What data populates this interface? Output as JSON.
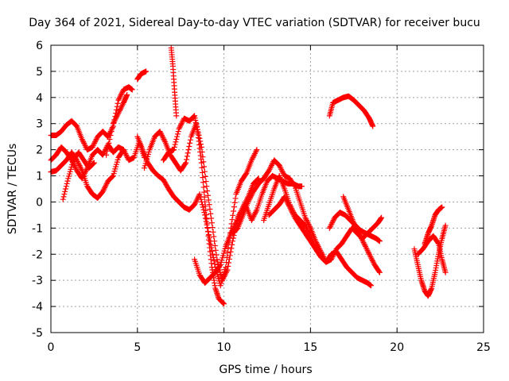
{
  "chart_data": {
    "type": "scatter",
    "title": "Day 364 of 2021, Sidereal Day-to-day VTEC variation (SDTVAR) for receiver bucu",
    "xlabel": "GPS time / hours",
    "ylabel": "SDTVAR / TECUs",
    "xlim": [
      0,
      25
    ],
    "ylim": [
      -5,
      6
    ],
    "xticks": [
      0,
      5,
      10,
      15,
      20,
      25
    ],
    "yticks": [
      -5,
      -4,
      -3,
      -2,
      -1,
      0,
      1,
      2,
      3,
      4,
      5,
      6
    ],
    "grid": true,
    "legend": "none",
    "marker": "+",
    "color": "#ff0000",
    "series": [
      {
        "values": [
          [
            0.0,
            2.55
          ],
          [
            0.3,
            2.55
          ],
          [
            0.6,
            2.7
          ],
          [
            0.9,
            2.95
          ],
          [
            1.2,
            3.1
          ],
          [
            1.5,
            2.9
          ],
          [
            1.8,
            2.4
          ],
          [
            2.1,
            2.0
          ],
          [
            2.4,
            2.1
          ],
          [
            2.7,
            2.5
          ],
          [
            3.0,
            2.7
          ],
          [
            3.3,
            2.5
          ],
          [
            3.6,
            2.9
          ],
          [
            3.9,
            3.9
          ],
          [
            4.2,
            4.3
          ],
          [
            4.5,
            4.4
          ],
          [
            4.7,
            4.3
          ]
        ]
      },
      {
        "values": [
          [
            0.0,
            1.6
          ],
          [
            0.3,
            1.8
          ],
          [
            0.6,
            2.1
          ],
          [
            0.9,
            1.9
          ],
          [
            1.2,
            1.6
          ],
          [
            1.5,
            1.2
          ],
          [
            1.8,
            0.9
          ],
          [
            2.1,
            1.3
          ],
          [
            2.4,
            1.8
          ],
          [
            2.7,
            2.0
          ],
          [
            3.0,
            1.8
          ],
          [
            3.3,
            2.2
          ],
          [
            3.6,
            1.9
          ],
          [
            3.9,
            2.1
          ],
          [
            4.2,
            2.0
          ],
          [
            4.5,
            1.6
          ],
          [
            4.8,
            1.7
          ],
          [
            5.1,
            2.3
          ],
          [
            5.4,
            1.7
          ]
        ]
      },
      {
        "values": [
          [
            0.0,
            1.15
          ],
          [
            0.3,
            1.2
          ],
          [
            0.6,
            1.4
          ],
          [
            0.9,
            1.6
          ],
          [
            1.2,
            1.9
          ],
          [
            1.5,
            1.6
          ],
          [
            1.8,
            1.2
          ],
          [
            2.1,
            0.6
          ],
          [
            2.4,
            0.3
          ],
          [
            2.7,
            0.15
          ],
          [
            3.0,
            0.4
          ],
          [
            3.3,
            0.8
          ],
          [
            3.6,
            1.0
          ],
          [
            3.9,
            1.7
          ],
          [
            4.2,
            2.0
          ]
        ]
      },
      {
        "values": [
          [
            0.7,
            0.1
          ],
          [
            1.0,
            0.9
          ],
          [
            1.3,
            1.6
          ],
          [
            1.6,
            1.9
          ],
          [
            1.9,
            1.6
          ],
          [
            2.2,
            1.3
          ],
          [
            2.5,
            1.5
          ]
        ]
      },
      {
        "values": [
          [
            3.2,
            1.8
          ],
          [
            3.6,
            3.0
          ],
          [
            3.9,
            3.4
          ],
          [
            4.2,
            3.8
          ],
          [
            4.4,
            4.1
          ]
        ]
      },
      {
        "values": [
          [
            5.0,
            4.7
          ],
          [
            5.2,
            4.9
          ],
          [
            5.5,
            5.0
          ]
        ]
      },
      {
        "values": [
          [
            6.95,
            5.9
          ],
          [
            7.05,
            5.2
          ],
          [
            7.15,
            4.2
          ],
          [
            7.25,
            3.3
          ]
        ]
      },
      {
        "values": [
          [
            5.0,
            2.5
          ],
          [
            5.3,
            2.0
          ],
          [
            5.6,
            1.5
          ],
          [
            5.9,
            1.2
          ],
          [
            6.2,
            1.0
          ],
          [
            6.5,
            0.85
          ],
          [
            6.8,
            0.5
          ],
          [
            7.1,
            0.2
          ],
          [
            7.4,
            0.0
          ],
          [
            7.7,
            -0.2
          ],
          [
            8.0,
            -0.3
          ],
          [
            8.3,
            -0.1
          ],
          [
            8.6,
            0.3
          ],
          [
            8.9,
            -0.5
          ],
          [
            9.2,
            -1.5
          ],
          [
            9.5,
            -2.5
          ],
          [
            9.8,
            -3.2
          ],
          [
            10.1,
            -2.5
          ],
          [
            10.4,
            -1.0
          ],
          [
            10.7,
            0.3
          ],
          [
            11.0,
            0.8
          ],
          [
            11.3,
            1.1
          ],
          [
            11.6,
            1.6
          ],
          [
            11.9,
            2.0
          ]
        ]
      },
      {
        "values": [
          [
            5.4,
            1.3
          ],
          [
            5.7,
            2.0
          ],
          [
            6.0,
            2.5
          ],
          [
            6.3,
            2.7
          ],
          [
            6.6,
            2.3
          ],
          [
            6.9,
            1.8
          ],
          [
            7.2,
            1.5
          ],
          [
            7.5,
            1.2
          ],
          [
            7.8,
            1.5
          ],
          [
            8.1,
            2.5
          ],
          [
            8.4,
            3.0
          ],
          [
            8.7,
            2.1
          ],
          [
            9.0,
            0.6
          ],
          [
            9.3,
            -0.8
          ],
          [
            9.6,
            -2.2
          ],
          [
            9.9,
            -3.0
          ],
          [
            10.2,
            -2.6
          ],
          [
            10.5,
            -1.5
          ],
          [
            10.8,
            -0.6
          ],
          [
            11.1,
            -0.2
          ],
          [
            11.4,
            0.2
          ],
          [
            11.7,
            0.7
          ],
          [
            12.0,
            0.9
          ]
        ]
      },
      {
        "values": [
          [
            6.5,
            1.6
          ],
          [
            6.8,
            1.9
          ],
          [
            7.1,
            2.0
          ],
          [
            7.4,
            2.8
          ],
          [
            7.7,
            3.2
          ],
          [
            8.0,
            3.1
          ],
          [
            8.3,
            3.3
          ],
          [
            8.5,
            2.6
          ],
          [
            8.7,
            1.5
          ],
          [
            8.9,
            0.0
          ],
          [
            9.1,
            -1.3
          ],
          [
            9.3,
            -2.5
          ],
          [
            9.5,
            -3.3
          ],
          [
            9.7,
            -3.7
          ],
          [
            10.0,
            -3.9
          ]
        ]
      },
      {
        "values": [
          [
            8.3,
            -2.2
          ],
          [
            8.6,
            -2.8
          ],
          [
            8.9,
            -3.1
          ],
          [
            9.2,
            -2.9
          ],
          [
            9.5,
            -2.7
          ],
          [
            9.8,
            -2.4
          ],
          [
            10.1,
            -1.7
          ],
          [
            10.4,
            -1.2
          ],
          [
            10.7,
            -0.8
          ],
          [
            11.0,
            -0.4
          ],
          [
            11.3,
            -0.2
          ],
          [
            11.6,
            -0.7
          ],
          [
            11.9,
            -0.3
          ],
          [
            12.2,
            0.3
          ],
          [
            12.5,
            0.8
          ],
          [
            12.8,
            1.0
          ],
          [
            13.1,
            0.9
          ],
          [
            13.4,
            0.8
          ],
          [
            13.7,
            0.7
          ],
          [
            14.0,
            0.7
          ],
          [
            14.3,
            0.6
          ],
          [
            14.5,
            0.6
          ]
        ]
      },
      {
        "values": [
          [
            10.5,
            -1.2
          ],
          [
            10.8,
            -1.0
          ],
          [
            11.1,
            -0.5
          ],
          [
            11.4,
            0.0
          ],
          [
            11.7,
            0.4
          ],
          [
            12.0,
            0.7
          ],
          [
            12.3,
            0.9
          ],
          [
            12.6,
            1.2
          ],
          [
            12.9,
            1.6
          ],
          [
            13.2,
            1.4
          ],
          [
            13.5,
            1.0
          ],
          [
            13.8,
            0.9
          ],
          [
            14.1,
            0.6
          ],
          [
            14.4,
            0.0
          ],
          [
            14.7,
            -0.6
          ],
          [
            15.0,
            -1.0
          ],
          [
            15.3,
            -1.5
          ],
          [
            15.6,
            -1.9
          ],
          [
            15.9,
            -2.3
          ],
          [
            16.2,
            -2.2
          ],
          [
            16.5,
            -1.8
          ],
          [
            16.8,
            -1.6
          ],
          [
            17.1,
            -1.3
          ],
          [
            17.4,
            -1.0
          ],
          [
            17.7,
            -1.2
          ],
          [
            18.0,
            -1.4
          ],
          [
            18.3,
            -1.2
          ],
          [
            18.6,
            -1.0
          ],
          [
            18.9,
            -0.8
          ],
          [
            19.1,
            -0.6
          ]
        ]
      },
      {
        "values": [
          [
            12.6,
            -0.5
          ],
          [
            12.9,
            -0.3
          ],
          [
            13.2,
            -0.1
          ],
          [
            13.5,
            0.2
          ],
          [
            13.8,
            -0.2
          ],
          [
            14.1,
            -0.6
          ],
          [
            14.4,
            -0.9
          ],
          [
            14.7,
            -1.2
          ],
          [
            15.0,
            -1.5
          ],
          [
            15.3,
            -1.8
          ],
          [
            15.6,
            -2.1
          ],
          [
            15.9,
            -2.3
          ],
          [
            16.2,
            -2.0
          ],
          [
            16.5,
            -1.9
          ],
          [
            16.8,
            -2.2
          ],
          [
            17.1,
            -2.5
          ],
          [
            17.4,
            -2.7
          ],
          [
            17.7,
            -2.9
          ],
          [
            18.0,
            -3.0
          ],
          [
            18.3,
            -3.1
          ],
          [
            18.5,
            -3.2
          ]
        ]
      },
      {
        "values": [
          [
            12.3,
            -0.7
          ],
          [
            12.6,
            -0.1
          ],
          [
            12.9,
            0.5
          ],
          [
            13.2,
            1.0
          ],
          [
            13.5,
            0.5
          ],
          [
            13.8,
            -0.1
          ],
          [
            14.1,
            -0.5
          ],
          [
            14.4,
            -0.7
          ],
          [
            14.7,
            -0.9
          ],
          [
            15.0,
            -1.3
          ],
          [
            15.3,
            -1.8
          ],
          [
            15.6,
            -2.1
          ],
          [
            15.9,
            -2.3
          ]
        ]
      },
      {
        "values": [
          [
            16.1,
            3.3
          ],
          [
            16.3,
            3.8
          ],
          [
            16.6,
            3.9
          ],
          [
            16.9,
            4.0
          ],
          [
            17.2,
            4.05
          ],
          [
            17.5,
            3.9
          ],
          [
            17.8,
            3.7
          ],
          [
            18.1,
            3.5
          ],
          [
            18.4,
            3.2
          ],
          [
            18.6,
            2.9
          ]
        ]
      },
      {
        "values": [
          [
            16.1,
            -1.0
          ],
          [
            16.4,
            -0.6
          ],
          [
            16.7,
            -0.4
          ],
          [
            17.0,
            -0.5
          ],
          [
            17.3,
            -0.7
          ],
          [
            17.6,
            -0.9
          ],
          [
            17.9,
            -1.1
          ],
          [
            18.2,
            -1.2
          ],
          [
            18.5,
            -1.3
          ],
          [
            18.8,
            -1.4
          ],
          [
            19.0,
            -1.5
          ]
        ]
      },
      {
        "values": [
          [
            16.9,
            0.2
          ],
          [
            17.2,
            -0.3
          ],
          [
            17.5,
            -0.8
          ],
          [
            17.8,
            -1.2
          ],
          [
            18.1,
            -1.6
          ],
          [
            18.4,
            -2.0
          ],
          [
            18.7,
            -2.4
          ],
          [
            19.0,
            -2.7
          ]
        ]
      },
      {
        "values": [
          [
            21.0,
            -1.8
          ],
          [
            21.2,
            -2.4
          ],
          [
            21.4,
            -3.0
          ],
          [
            21.6,
            -3.4
          ],
          [
            21.8,
            -3.6
          ],
          [
            22.0,
            -3.3
          ],
          [
            22.2,
            -2.7
          ],
          [
            22.4,
            -2.0
          ],
          [
            22.6,
            -1.4
          ],
          [
            22.8,
            -0.9
          ]
        ]
      },
      {
        "values": [
          [
            21.2,
            -2.0
          ],
          [
            21.5,
            -1.8
          ],
          [
            21.8,
            -1.5
          ],
          [
            22.1,
            -1.3
          ],
          [
            22.4,
            -1.6
          ],
          [
            22.6,
            -2.2
          ],
          [
            22.8,
            -2.7
          ]
        ]
      },
      {
        "values": [
          [
            21.6,
            -1.6
          ],
          [
            21.8,
            -1.2
          ],
          [
            22.0,
            -0.9
          ],
          [
            22.2,
            -0.5
          ],
          [
            22.4,
            -0.3
          ],
          [
            22.6,
            -0.2
          ]
        ]
      }
    ]
  }
}
